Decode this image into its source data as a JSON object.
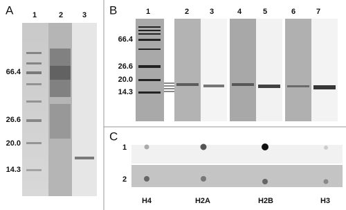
{
  "panels": {
    "A": {
      "label": "A",
      "lanes": [
        "1",
        "2",
        "3"
      ],
      "markers": [
        "66.4",
        "26.6",
        "20.0",
        "14.3"
      ]
    },
    "B": {
      "label": "B",
      "lanes": [
        "1",
        "2",
        "3",
        "4",
        "5",
        "6",
        "7"
      ],
      "markers": [
        "66.4",
        "26.6",
        "20.0",
        "14.3"
      ]
    },
    "C": {
      "label": "C",
      "rows": [
        "1",
        "2"
      ],
      "columns": [
        "H4",
        "H2A",
        "H2B",
        "H3"
      ]
    }
  }
}
